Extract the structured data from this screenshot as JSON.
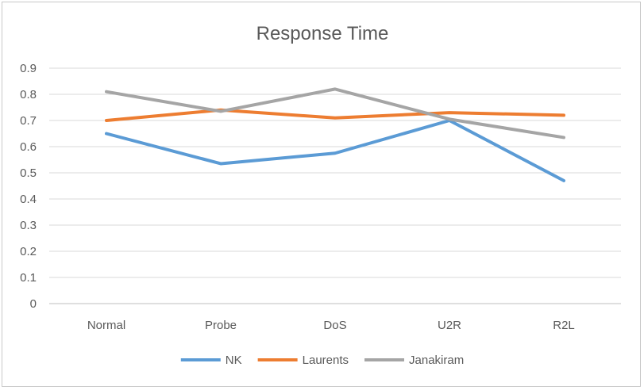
{
  "chart_data": {
    "type": "line",
    "title": "Response Time",
    "xlabel": "",
    "ylabel": "",
    "categories": [
      "Normal",
      "Probe",
      "DoS",
      "U2R",
      "R2L"
    ],
    "ylim": [
      0,
      0.9
    ],
    "yticks": [
      "0",
      "0.1",
      "0.2",
      "0.3",
      "0.4",
      "0.5",
      "0.6",
      "0.7",
      "0.8",
      "0.9"
    ],
    "grid": true,
    "legend_position": "bottom",
    "series": [
      {
        "name": "NK",
        "color": "#5b9bd5",
        "values": [
          0.65,
          0.535,
          0.575,
          0.7,
          0.47
        ]
      },
      {
        "name": "Laurents",
        "color": "#ed7d31",
        "values": [
          0.7,
          0.74,
          0.71,
          0.73,
          0.72
        ]
      },
      {
        "name": "Janakiram",
        "color": "#a5a5a5",
        "values": [
          0.81,
          0.735,
          0.82,
          0.705,
          0.635
        ]
      }
    ]
  }
}
